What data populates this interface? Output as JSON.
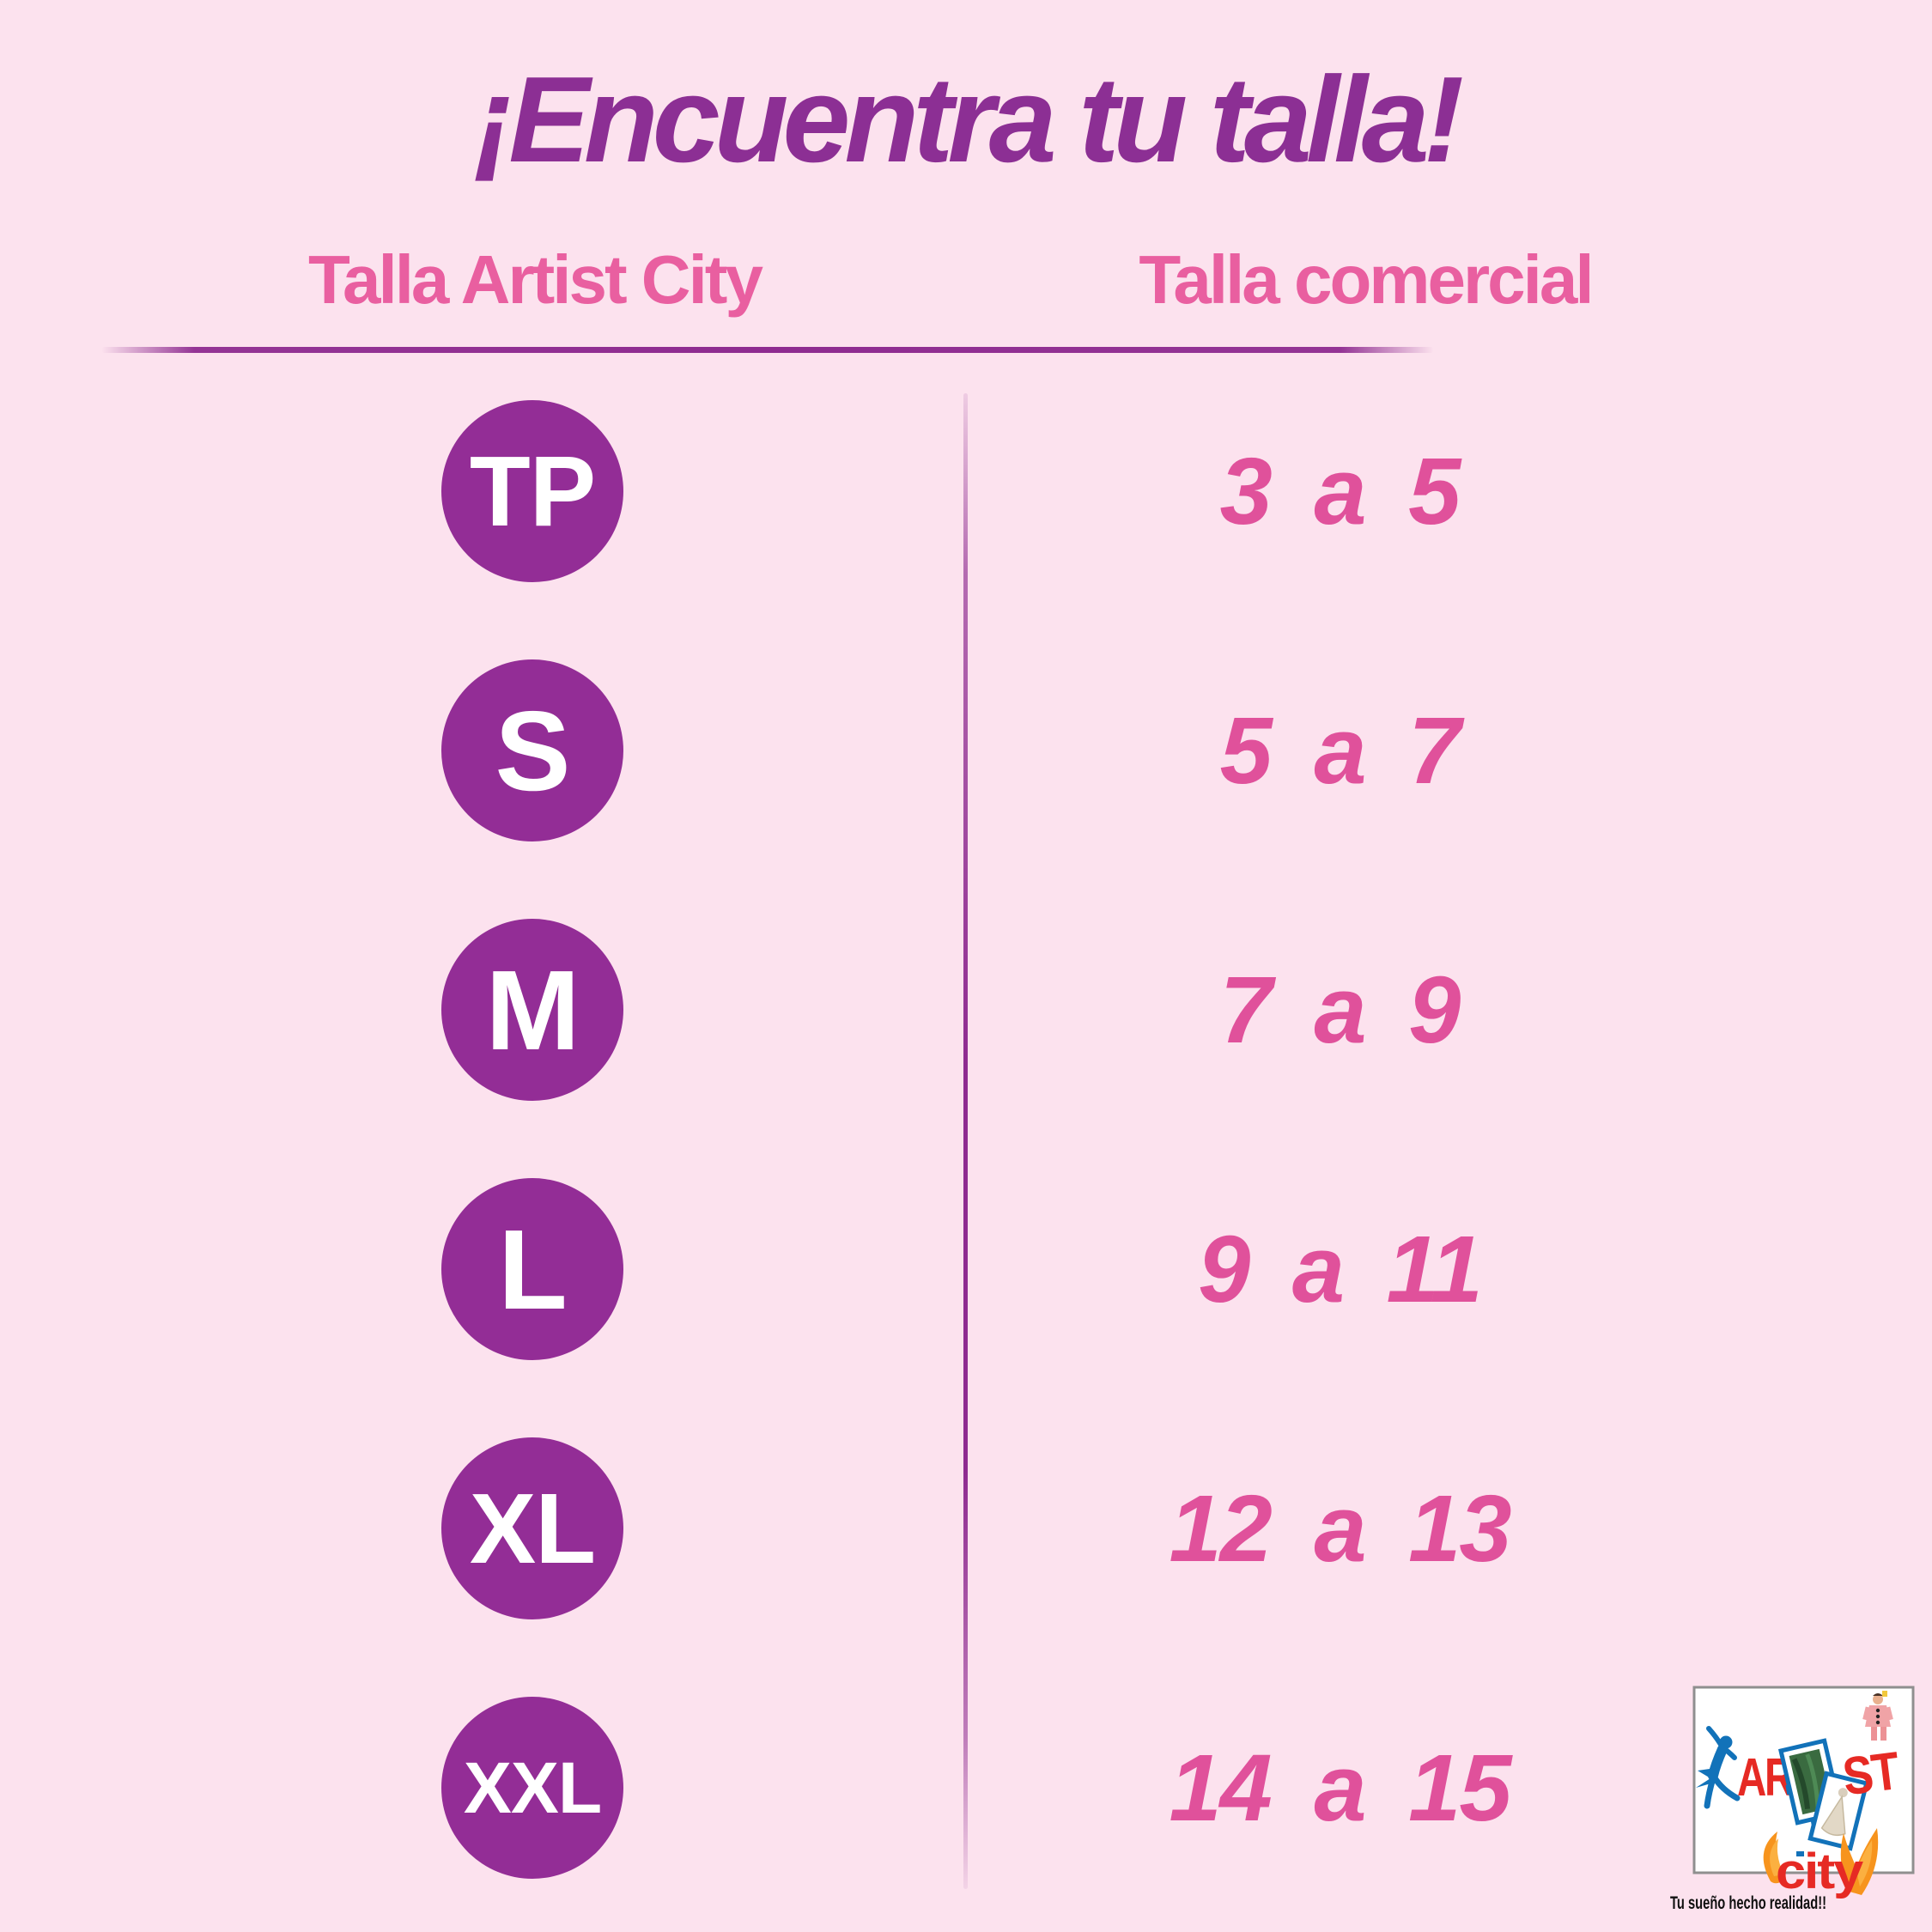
{
  "poster": {
    "title": "¡Encuentra tu talla!",
    "columns": {
      "left_header": "Talla Artist City",
      "right_header": "Talla comercial"
    },
    "rows": [
      {
        "artist_size": "TP",
        "commercial_size": "3 a 5"
      },
      {
        "artist_size": "S",
        "commercial_size": "5 a 7"
      },
      {
        "artist_size": "M",
        "commercial_size": "7 a 9"
      },
      {
        "artist_size": "L",
        "commercial_size": "9 a 11"
      },
      {
        "artist_size": "XL",
        "commercial_size": "12 a 13"
      },
      {
        "artist_size": "XXL",
        "commercial_size": "14 a 15"
      }
    ],
    "colors": {
      "background": "#FCE2EE",
      "title_purple": "#8C2F94",
      "header_pink": "#E95FA0",
      "value_pink": "#E0519B",
      "badge_purple": "#932D96",
      "divider_purple": "#8E2B90"
    }
  },
  "logo": {
    "word_part1": "AR",
    "word_middle": "T",
    "word_part2": "ST",
    "word_bottom": "city",
    "tagline": "Tu sueño hecho realidad!!",
    "colors": {
      "red": "#E62A24",
      "blue": "#1272B9",
      "orange": "#F7941D"
    }
  },
  "chart_data": {
    "type": "table",
    "title": "¡Encuentra tu talla!",
    "columns": [
      "Talla Artist City",
      "Talla comercial"
    ],
    "rows": [
      [
        "TP",
        "3 a 5"
      ],
      [
        "S",
        "5 a 7"
      ],
      [
        "M",
        "7 a 9"
      ],
      [
        "L",
        "9 a 11"
      ],
      [
        "XL",
        "12 a 13"
      ],
      [
        "XXL",
        "14 a 15"
      ]
    ]
  }
}
